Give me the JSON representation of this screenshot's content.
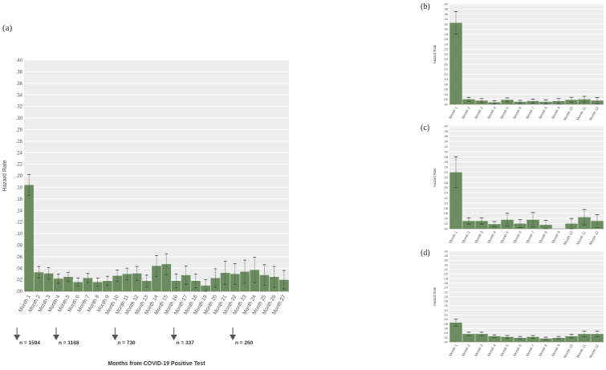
{
  "colors": {
    "bar": "#6b8c5e",
    "plot_bg": "#ededed",
    "grid": "#ffffff",
    "err": "#444444",
    "text": "#333333"
  },
  "chart_data": [
    {
      "panel": "(a)",
      "type": "bar",
      "ylabel": "Hazard Rate",
      "xlabel": "Months from COVID-19 Positive Test",
      "ylim": [
        0,
        0.4
      ],
      "ytick_labels": [
        ".00",
        ".02",
        ".04",
        ".06",
        ".08",
        ".10",
        ".12",
        ".14",
        ".16",
        ".18",
        ".20",
        ".22",
        ".24",
        ".26",
        ".28",
        ".30",
        ".32",
        ".34",
        ".36",
        ".38",
        ".40"
      ],
      "categories": [
        "Month 1",
        "Month 2",
        "Month 3",
        "Month 4",
        "Month 5",
        "Month 6",
        "Month 7",
        "Month 8",
        "Month 9",
        "Month 10",
        "Month 11",
        "Month 12",
        "Month 13",
        "Month 14",
        "Month 15",
        "Month 16",
        "Month 17",
        "Month 18",
        "Month 19",
        "Month 20",
        "Month 21",
        "Month 22",
        "Month 23",
        "Month 24",
        "Month 25",
        "Month 26",
        "Month 27"
      ],
      "values": [
        0.184,
        0.033,
        0.031,
        0.022,
        0.025,
        0.016,
        0.023,
        0.016,
        0.018,
        0.027,
        0.03,
        0.031,
        0.018,
        0.044,
        0.047,
        0.018,
        0.028,
        0.018,
        0.01,
        0.023,
        0.032,
        0.03,
        0.034,
        0.037,
        0.028,
        0.025,
        0.02
      ],
      "err": [
        0.018,
        0.01,
        0.01,
        0.008,
        0.008,
        0.007,
        0.008,
        0.007,
        0.008,
        0.01,
        0.01,
        0.012,
        0.01,
        0.018,
        0.018,
        0.012,
        0.016,
        0.012,
        0.01,
        0.016,
        0.02,
        0.018,
        0.02,
        0.022,
        0.018,
        0.018,
        0.016
      ],
      "annotations": [
        {
          "index": 0,
          "text": "n = 1594"
        },
        {
          "index": 4,
          "text": "n = 1168"
        },
        {
          "index": 10,
          "text": "n = 730"
        },
        {
          "index": 16,
          "text": "n = 337"
        },
        {
          "index": 22,
          "text": "n = 260"
        }
      ]
    },
    {
      "panel": "(b)",
      "type": "bar",
      "ylabel": "Hazard Rate",
      "ylim": [
        0,
        0.4
      ],
      "ytick_labels": [
        ".00",
        ".02",
        ".04",
        ".06",
        ".08",
        ".10",
        ".12",
        ".14",
        ".16",
        ".18",
        ".20",
        ".22",
        ".24",
        ".26",
        ".28",
        ".30",
        ".32",
        ".34",
        ".36",
        ".38",
        ".40"
      ],
      "categories": [
        "Month 1",
        "Month 2",
        "Month 3",
        "Month 4",
        "Month 5",
        "Month 6",
        "Month 7",
        "Month 8",
        "Month 9",
        "Month 10",
        "Month 11",
        "Month 12"
      ],
      "values": [
        0.325,
        0.02,
        0.015,
        0.008,
        0.018,
        0.01,
        0.013,
        0.01,
        0.013,
        0.018,
        0.02,
        0.015
      ],
      "err": [
        0.045,
        0.008,
        0.008,
        0.006,
        0.008,
        0.006,
        0.008,
        0.008,
        0.01,
        0.01,
        0.012,
        0.012
      ]
    },
    {
      "panel": "(c)",
      "type": "bar",
      "ylabel": "Hazard Rate",
      "ylim": [
        0,
        0.4
      ],
      "ytick_labels": [
        ".00",
        ".02",
        ".04",
        ".06",
        ".08",
        ".10",
        ".12",
        ".14",
        ".16",
        ".18",
        ".20",
        ".22",
        ".24",
        ".26",
        ".28",
        ".30",
        ".32",
        ".34",
        ".36",
        ".38",
        ".40"
      ],
      "categories": [
        "Month 1",
        "Month 2",
        "Month 3",
        "Month 4",
        "Month 5",
        "Month 6",
        "Month 7",
        "Month 8",
        "Month 9",
        "Month 10",
        "Month 11",
        "Month 12"
      ],
      "values": [
        0.22,
        0.03,
        0.03,
        0.018,
        0.035,
        0.02,
        0.035,
        0.015,
        0.0,
        0.02,
        0.045,
        0.03
      ],
      "err": [
        0.06,
        0.012,
        0.012,
        0.01,
        0.025,
        0.015,
        0.028,
        0.018,
        0.0,
        0.02,
        0.03,
        0.025
      ]
    },
    {
      "panel": "(d)",
      "type": "bar",
      "ylabel": "Hazard Rate",
      "ylim": [
        0,
        0.4
      ],
      "ytick_labels": [
        ".00",
        ".02",
        ".04",
        ".06",
        ".08",
        ".10",
        ".12",
        ".14",
        ".16",
        ".18",
        ".20",
        ".22",
        ".24",
        ".26",
        ".28",
        ".30",
        ".32",
        ".34",
        ".36",
        ".38",
        ".40"
      ],
      "categories": [
        "Month 1",
        "Month 2",
        "Month 3",
        "Month 4",
        "Month 5",
        "Month 6",
        "Month 7",
        "Month 8",
        "Month 9",
        "Month 10",
        "Month 11",
        "Month 12"
      ],
      "values": [
        0.085,
        0.035,
        0.035,
        0.025,
        0.022,
        0.018,
        0.022,
        0.015,
        0.018,
        0.025,
        0.035,
        0.035
      ],
      "err": [
        0.015,
        0.008,
        0.008,
        0.006,
        0.006,
        0.006,
        0.006,
        0.006,
        0.006,
        0.008,
        0.012,
        0.012
      ]
    }
  ]
}
